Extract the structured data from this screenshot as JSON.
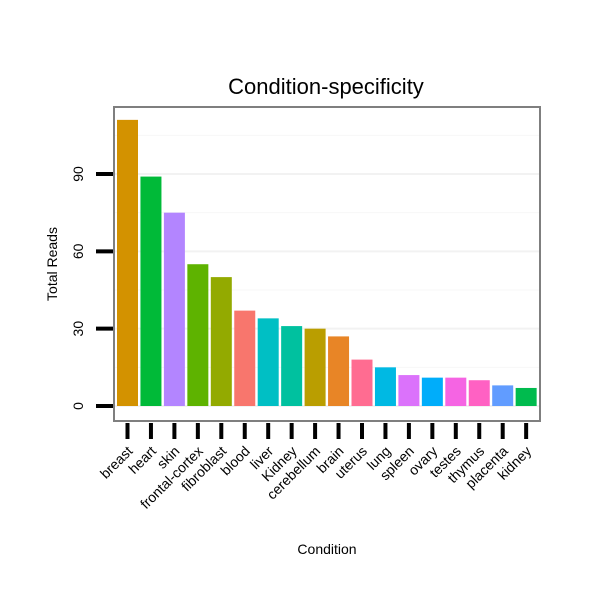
{
  "chart_data": {
    "type": "bar",
    "title": "Condition-specificity",
    "xlabel": "Condition",
    "ylabel": "Total Reads",
    "ylim": [
      -3,
      113
    ],
    "yticks": [
      0,
      30,
      60,
      90
    ],
    "grid": true,
    "categories": [
      "breast",
      "heart",
      "skin",
      "frontal-cortex",
      "fibroblast",
      "blood",
      "liver",
      "Kidney",
      "cerebellum",
      "brain",
      "uterus",
      "lung",
      "spleen",
      "ovary",
      "testes",
      "thymus",
      "placenta",
      "kidney"
    ],
    "values": [
      111,
      89,
      75,
      55,
      50,
      37,
      34,
      31,
      30,
      27,
      18,
      15,
      12,
      11,
      11,
      10,
      8,
      7
    ],
    "colors": [
      "#D39200",
      "#00BA38",
      "#B385FF",
      "#5EB300",
      "#93AA00",
      "#F8766D",
      "#00BFC4",
      "#00C19F",
      "#BA9E00",
      "#E88526",
      "#FF6C91",
      "#00B9E3",
      "#DB72FB",
      "#00ADFA",
      "#F564E3",
      "#FF61C3",
      "#619CFF",
      "#00BB4E"
    ]
  }
}
